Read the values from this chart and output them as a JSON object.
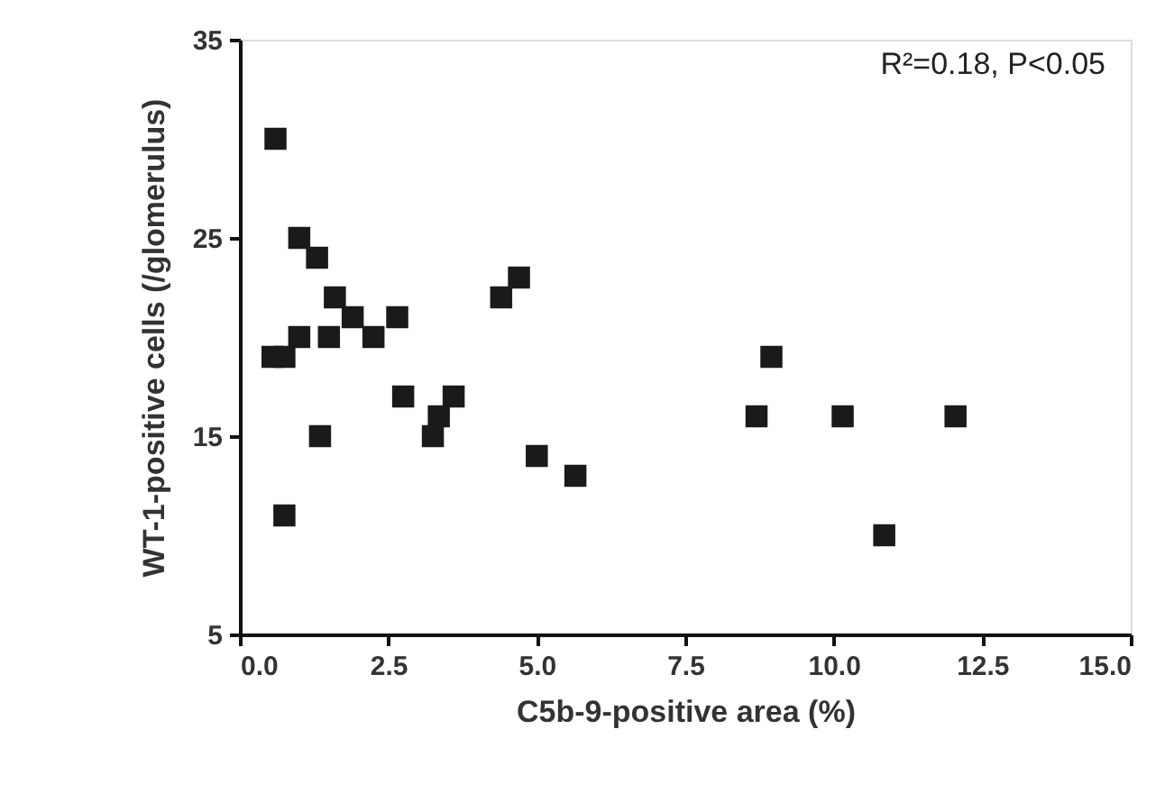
{
  "chart_data": {
    "type": "scatter",
    "xlabel": "C5b-9-positive area (%)",
    "ylabel": "WT-1-positive cells (/glomerulus)",
    "annotations": [
      "R²=0.18, P<0.05"
    ],
    "marker": "square",
    "grid": false,
    "legend": false,
    "xlim": [
      0,
      15
    ],
    "ylim": [
      5,
      35
    ],
    "xticks": [
      {
        "value": 0,
        "label": "0.0"
      },
      {
        "value": 2.5,
        "label": "2.5"
      },
      {
        "value": 5,
        "label": "5.0"
      },
      {
        "value": 7.5,
        "label": "7.5"
      },
      {
        "value": 10,
        "label": "10.0"
      },
      {
        "value": 12.5,
        "label": "12.5"
      },
      {
        "value": 15,
        "label": "15.0"
      }
    ],
    "yticks": [
      5,
      15,
      25,
      35
    ],
    "series": [
      {
        "color": "#1a1a1a",
        "x": [
          0.6,
          1.0,
          1.3,
          1.6,
          1.9,
          2.65,
          2.25,
          1.5,
          1.0,
          0.55,
          0.75,
          2.75,
          3.6,
          3.35,
          3.25,
          1.35,
          0.75,
          4.4,
          4.7,
          5.0,
          5.65,
          8.7,
          8.95,
          10.15,
          12.05,
          10.85
        ],
        "values": [
          30,
          25,
          24,
          22,
          21,
          21,
          20,
          20,
          20,
          19,
          19,
          17,
          17,
          16,
          15,
          15,
          11,
          22,
          23,
          14,
          13,
          16,
          19,
          16,
          16,
          10
        ]
      }
    ]
  }
}
